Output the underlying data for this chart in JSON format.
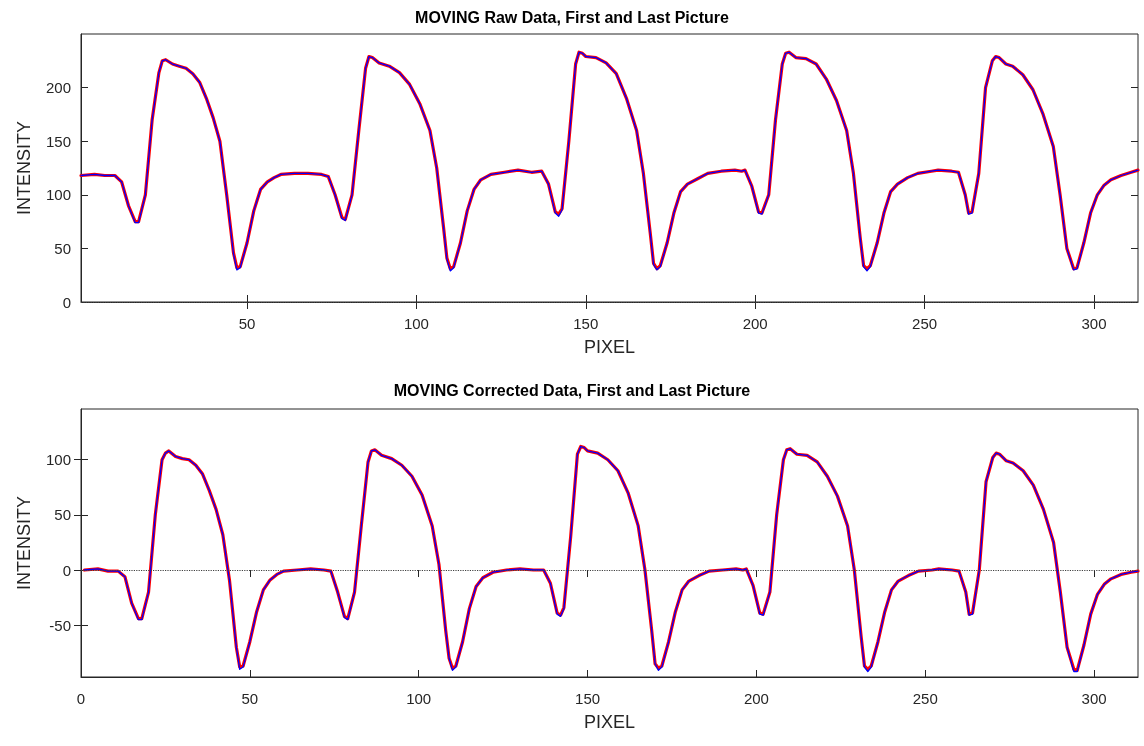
{
  "chart_data": [
    {
      "type": "line",
      "title": "MOVING Raw Data, First and Last Picture",
      "xlabel": "PIXEL",
      "ylabel": "INTENSITY",
      "x": [
        1,
        5,
        8,
        11,
        13,
        15,
        17,
        18,
        20,
        22,
        24,
        25,
        26,
        28,
        30,
        32,
        34,
        36,
        38,
        40,
        42,
        44,
        46,
        47,
        48,
        50,
        52,
        54,
        56,
        58,
        60,
        64,
        68,
        72,
        74,
        76,
        78,
        79,
        81,
        83,
        85,
        86,
        87,
        89,
        92,
        95,
        98,
        101,
        104,
        106,
        108,
        109,
        110,
        111,
        113,
        115,
        117,
        119,
        122,
        126,
        130,
        134,
        137,
        139,
        141,
        142,
        143,
        145,
        147,
        148,
        149,
        150,
        153,
        156,
        159,
        162,
        165,
        167,
        169,
        170,
        171,
        172,
        174,
        176,
        178,
        180,
        183,
        186,
        190,
        194,
        196,
        197,
        199,
        201,
        202,
        204,
        206,
        208,
        209,
        210,
        212,
        215,
        218,
        221,
        224,
        227,
        229,
        231,
        232,
        233,
        234,
        236,
        238,
        240,
        242,
        245,
        248,
        252,
        254,
        258,
        260,
        262,
        263,
        264,
        266,
        268,
        270,
        271,
        272,
        274,
        276,
        279,
        282,
        285,
        288,
        290,
        292,
        294,
        295,
        297,
        299,
        301,
        303,
        305,
        308,
        311,
        313
      ],
      "series": [
        {
          "color": "#ff0000",
          "values": [
            118,
            119,
            118,
            118,
            112,
            90,
            75,
            75,
            100,
            170,
            214,
            225,
            226,
            222,
            220,
            218,
            213,
            205,
            190,
            172,
            150,
            100,
            46,
            32,
            33,
            55,
            85,
            105,
            112,
            116,
            119,
            120,
            120,
            119,
            117,
            100,
            79,
            77,
            100,
            160,
            218,
            229,
            228,
            223,
            220,
            214,
            203,
            185,
            160,
            125,
            70,
            41,
            31,
            33,
            55,
            85,
            105,
            114,
            119,
            121,
            123,
            121,
            122,
            110,
            84,
            82,
            87,
            150,
            222,
            233,
            232,
            229,
            228,
            223,
            213,
            190,
            160,
            120,
            65,
            36,
            31,
            34,
            55,
            83,
            103,
            110,
            115,
            120,
            122,
            123,
            122,
            123,
            108,
            84,
            83,
            100,
            170,
            222,
            232,
            233,
            228,
            227,
            222,
            208,
            188,
            160,
            120,
            60,
            34,
            31,
            34,
            55,
            83,
            103,
            110,
            116,
            120,
            122,
            123,
            122,
            121,
            100,
            83,
            84,
            120,
            200,
            225,
            229,
            228,
            222,
            220,
            212,
            198,
            175,
            145,
            100,
            50,
            31,
            32,
            55,
            83,
            100,
            109,
            114,
            118,
            121,
            123
          ]
        },
        {
          "color": "#0000ff",
          "values": [
            118,
            119,
            118,
            118,
            112,
            90,
            74,
            74,
            100,
            170,
            214,
            225,
            226,
            222,
            220,
            218,
            213,
            205,
            190,
            172,
            150,
            100,
            45,
            30,
            32,
            55,
            85,
            105,
            112,
            116,
            119,
            120,
            120,
            119,
            117,
            100,
            78,
            76,
            100,
            160,
            218,
            229,
            228,
            223,
            220,
            214,
            203,
            185,
            160,
            125,
            70,
            40,
            29,
            32,
            55,
            85,
            105,
            114,
            119,
            121,
            123,
            121,
            122,
            110,
            83,
            80,
            86,
            150,
            222,
            233,
            232,
            229,
            228,
            223,
            213,
            190,
            160,
            120,
            65,
            35,
            30,
            33,
            55,
            83,
            103,
            110,
            115,
            120,
            122,
            123,
            122,
            123,
            108,
            83,
            82,
            100,
            170,
            222,
            232,
            233,
            228,
            227,
            222,
            208,
            188,
            160,
            120,
            60,
            33,
            29,
            33,
            55,
            83,
            103,
            110,
            116,
            120,
            122,
            123,
            122,
            121,
            100,
            82,
            83,
            120,
            200,
            225,
            229,
            228,
            222,
            220,
            212,
            198,
            175,
            145,
            100,
            50,
            30,
            31,
            55,
            83,
            100,
            109,
            114,
            118,
            121,
            123
          ]
        }
      ],
      "xlim": [
        1,
        313
      ],
      "xticks": [
        50,
        100,
        150,
        200,
        250,
        300
      ],
      "ylim": [
        0,
        250
      ],
      "yticks": [
        0,
        50,
        100,
        150,
        200
      ],
      "ref_lines": [
        {
          "axis": "y",
          "value": 0,
          "line_style": "dotted",
          "color": "#404040"
        }
      ],
      "grid": false,
      "marker": "none",
      "line_style": "solid"
    },
    {
      "type": "line",
      "title": "MOVING Corrected Data, First and Last Picture",
      "xlabel": "PIXEL",
      "ylabel": "INTENSITY",
      "x": [
        1,
        5,
        8,
        11,
        13,
        15,
        17,
        18,
        20,
        22,
        24,
        25,
        26,
        28,
        30,
        32,
        34,
        36,
        38,
        40,
        42,
        44,
        46,
        47,
        48,
        50,
        52,
        54,
        56,
        58,
        60,
        64,
        68,
        72,
        74,
        76,
        78,
        79,
        81,
        83,
        85,
        86,
        87,
        89,
        92,
        95,
        98,
        101,
        104,
        106,
        108,
        109,
        110,
        111,
        113,
        115,
        117,
        119,
        122,
        126,
        130,
        134,
        137,
        139,
        141,
        142,
        143,
        145,
        147,
        148,
        149,
        150,
        153,
        156,
        159,
        162,
        165,
        167,
        169,
        170,
        171,
        172,
        174,
        176,
        178,
        180,
        183,
        186,
        190,
        194,
        196,
        197,
        199,
        201,
        202,
        204,
        206,
        208,
        209,
        210,
        212,
        215,
        218,
        221,
        224,
        227,
        229,
        231,
        232,
        233,
        234,
        236,
        238,
        240,
        242,
        245,
        248,
        252,
        254,
        258,
        260,
        262,
        263,
        264,
        266,
        268,
        270,
        271,
        272,
        274,
        276,
        279,
        282,
        285,
        288,
        290,
        292,
        294,
        295,
        297,
        299,
        301,
        303,
        305,
        308,
        311,
        313
      ],
      "series": [
        {
          "color": "#ff0000",
          "values": [
            0,
            1,
            -1,
            -1,
            -6,
            -30,
            -44,
            -44,
            -20,
            50,
            100,
            106,
            108,
            103,
            101,
            100,
            95,
            87,
            72,
            55,
            32,
            -10,
            -70,
            -88,
            -87,
            -65,
            -38,
            -18,
            -9,
            -4,
            -1,
            0,
            1,
            0,
            -1,
            -20,
            -42,
            -44,
            -20,
            40,
            98,
            108,
            109,
            104,
            101,
            95,
            85,
            68,
            40,
            5,
            -55,
            -80,
            -89,
            -87,
            -65,
            -35,
            -15,
            -7,
            -2,
            0,
            1,
            0,
            0,
            -12,
            -39,
            -41,
            -34,
            30,
            105,
            112,
            111,
            108,
            106,
            100,
            90,
            70,
            40,
            0,
            -55,
            -85,
            -89,
            -87,
            -65,
            -38,
            -18,
            -10,
            -5,
            -1,
            0,
            1,
            0,
            1,
            -14,
            -39,
            -40,
            -20,
            50,
            100,
            109,
            110,
            105,
            104,
            98,
            85,
            67,
            40,
            0,
            -60,
            -87,
            -90,
            -87,
            -65,
            -38,
            -18,
            -10,
            -5,
            -1,
            0,
            1,
            0,
            -1,
            -20,
            -40,
            -39,
            0,
            80,
            102,
            106,
            105,
            99,
            97,
            90,
            77,
            55,
            25,
            -20,
            -70,
            -90,
            -91,
            -68,
            -40,
            -22,
            -13,
            -8,
            -4,
            -2,
            -1
          ]
        },
        {
          "color": "#0000ff",
          "values": [
            0,
            1,
            -1,
            -1,
            -6,
            -30,
            -45,
            -45,
            -20,
            50,
            100,
            106,
            108,
            103,
            101,
            100,
            95,
            87,
            72,
            55,
            32,
            -10,
            -70,
            -90,
            -88,
            -65,
            -38,
            -18,
            -9,
            -4,
            -1,
            0,
            1,
            0,
            -1,
            -20,
            -43,
            -45,
            -20,
            40,
            98,
            108,
            109,
            104,
            101,
            95,
            85,
            68,
            40,
            5,
            -55,
            -80,
            -91,
            -88,
            -65,
            -35,
            -15,
            -7,
            -2,
            0,
            1,
            0,
            0,
            -12,
            -40,
            -42,
            -35,
            30,
            105,
            112,
            111,
            108,
            106,
            100,
            90,
            70,
            40,
            0,
            -55,
            -85,
            -91,
            -88,
            -65,
            -38,
            -18,
            -10,
            -5,
            -1,
            0,
            1,
            0,
            1,
            -14,
            -40,
            -41,
            -20,
            50,
            100,
            109,
            110,
            105,
            104,
            98,
            85,
            67,
            40,
            0,
            -60,
            -88,
            -92,
            -88,
            -65,
            -38,
            -18,
            -10,
            -5,
            -1,
            0,
            1,
            0,
            -1,
            -20,
            -41,
            -40,
            0,
            80,
            102,
            106,
            105,
            99,
            97,
            90,
            77,
            55,
            25,
            -20,
            -70,
            -92,
            -92,
            -68,
            -40,
            -22,
            -13,
            -8,
            -4,
            -2,
            -1
          ]
        }
      ],
      "xlim": [
        0,
        313
      ],
      "xticks": [
        0,
        50,
        100,
        150,
        200,
        250,
        300
      ],
      "ylim": [
        -97,
        146
      ],
      "yticks": [
        -50,
        0,
        50,
        100
      ],
      "ref_lines": [
        {
          "axis": "y",
          "value": 0,
          "line_style": "dotted",
          "color": "#404040"
        }
      ],
      "grid": false,
      "marker": "none",
      "line_style": "solid"
    }
  ]
}
